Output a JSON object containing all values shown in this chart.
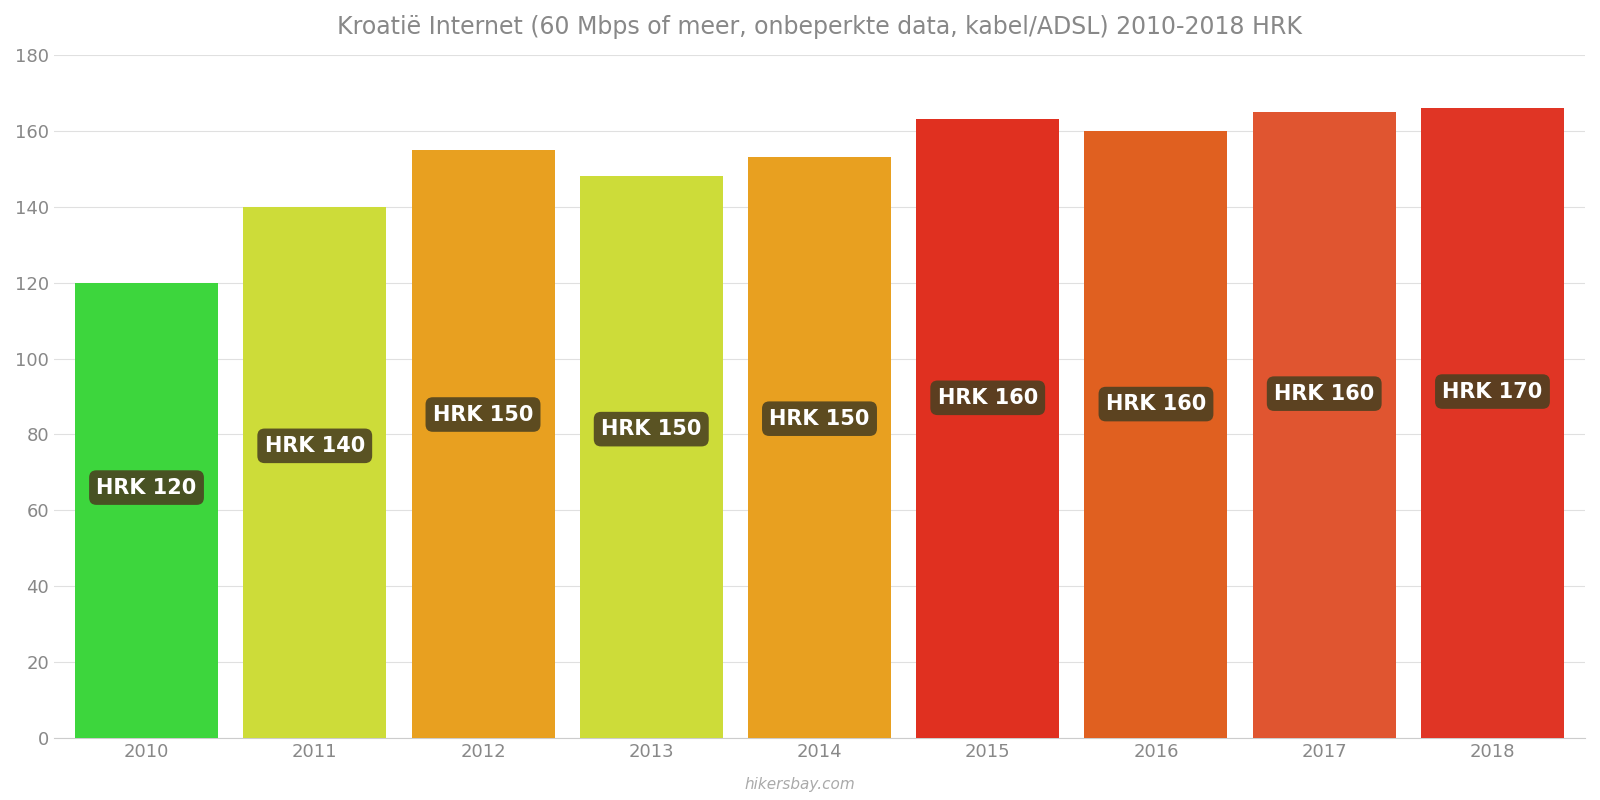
{
  "years": [
    2010,
    2011,
    2012,
    2013,
    2014,
    2015,
    2016,
    2017,
    2018
  ],
  "values": [
    120,
    140,
    155,
    148,
    153,
    163,
    160,
    165,
    166
  ],
  "labels": [
    "HRK 120",
    "HRK 140",
    "HRK 150",
    "HRK 150",
    "HRK 150",
    "HRK 160",
    "HRK 160",
    "HRK 160",
    "HRK 170"
  ],
  "bar_colors": [
    "#3DD63D",
    "#CDDC39",
    "#E8A020",
    "#CDDC39",
    "#E8A020",
    "#E03020",
    "#E06020",
    "#E05530",
    "#E03525"
  ],
  "title": "Kroatië Internet (60 Mbps of meer, onbeperkte data, kabel/ADSL) 2010-2018 HRK",
  "ylim": [
    0,
    180
  ],
  "yticks": [
    0,
    20,
    40,
    60,
    80,
    100,
    120,
    140,
    160,
    180
  ],
  "background_color": "#ffffff",
  "label_bg_color": "#4a4020",
  "label_text_color": "#ffffff",
  "watermark": "hikersbay.com",
  "title_fontsize": 17,
  "label_fontsize": 15,
  "tick_fontsize": 13,
  "bar_width": 0.85
}
